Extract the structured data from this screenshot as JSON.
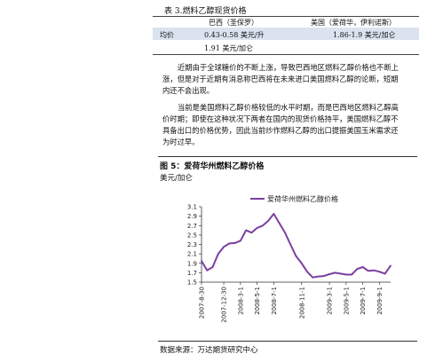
{
  "table": {
    "caption": "表 3.燃料乙醇现货价格",
    "col_brazil": "巴西（圣保罗）",
    "col_us": "美国（爱荷华，伊利诺斯）",
    "row_label": "均价",
    "brazil_value_1": "0.43-0.58 美元/升",
    "brazil_value_2": "1.91 美元/加仑",
    "us_value": "1.86-1.9 美元/加仑"
  },
  "body": {
    "para1": [
      "近期由于全球糖价的不断上涨，导致巴西地区燃料乙醇价格也不断上",
      "涨，但是对于近期有消息称巴西将在未来进口美国燃料乙醇的论断，短期",
      "内还不会出现。"
    ],
    "para2": [
      "当前是美国燃料乙醇价格较低的水平时期，而是巴西地区燃料乙醇高",
      "价时期；即使在这种状况下两者在国内的现货价格持平，美国燃料乙醇不",
      "具备出口的价格优势，因此当前炒作燃料乙醇的出口提振美国玉米需求还",
      "为时过早。"
    ]
  },
  "figure": {
    "title": "图 5：爱荷华州燃料乙醇价格",
    "unit": "美元/加仑",
    "source": "数据来源：万达期货研究中心"
  },
  "colors": {
    "line": "#7b3fa0",
    "shade": "#dbe3f0"
  },
  "chart_data": {
    "type": "line",
    "series": [
      {
        "name": "爱荷华州燃料乙醇价格",
        "x": [
          "2007-8-30",
          "2007-9-30",
          "2007-10-30",
          "2007-11-30",
          "2007-12-30",
          "2008-1-30",
          "2008-2-28",
          "2008-3-1",
          "2008-3-30",
          "2008-4-30",
          "2008-5-1",
          "2008-5-30",
          "2008-6-30",
          "2008-7-1",
          "2008-7-30",
          "2008-8-30",
          "2008-9-30",
          "2008-10-30",
          "2008-11-1",
          "2008-11-30",
          "2008-12-30",
          "2009-1-30",
          "2009-2-28",
          "2009-3-1",
          "2009-3-30",
          "2009-4-30",
          "2009-5-1",
          "2009-5-30",
          "2009-6-30",
          "2009-7-1",
          "2009-7-30",
          "2009-8-30",
          "2009-9-1",
          "2009-9-30",
          "2009-10-30"
        ],
        "values": [
          1.95,
          1.75,
          1.82,
          2.1,
          2.25,
          2.32,
          2.33,
          2.38,
          2.6,
          2.55,
          2.65,
          2.7,
          2.8,
          2.95,
          2.75,
          2.55,
          2.3,
          2.05,
          1.9,
          1.72,
          1.6,
          1.62,
          1.63,
          1.67,
          1.7,
          1.68,
          1.66,
          1.66,
          1.78,
          1.82,
          1.74,
          1.75,
          1.72,
          1.68,
          1.85
        ]
      }
    ],
    "x_ticks": [
      "2007-8-30",
      "2007-12-30",
      "2008-3-1",
      "2008-5-1",
      "2008-7-1",
      "2008-9-1",
      "2008-11-1",
      "2009-1-1",
      "2009-3-1",
      "2009-5-1",
      "2009-7-1",
      "2009-9-1"
    ],
    "y_ticks": [
      "3.1",
      "2.9",
      "2.7",
      "2.5",
      "2.3",
      "2.1",
      "1.9",
      "1.7",
      "1.5"
    ],
    "ylim": [
      1.5,
      3.1
    ],
    "legend_position": "top",
    "grid": false
  }
}
